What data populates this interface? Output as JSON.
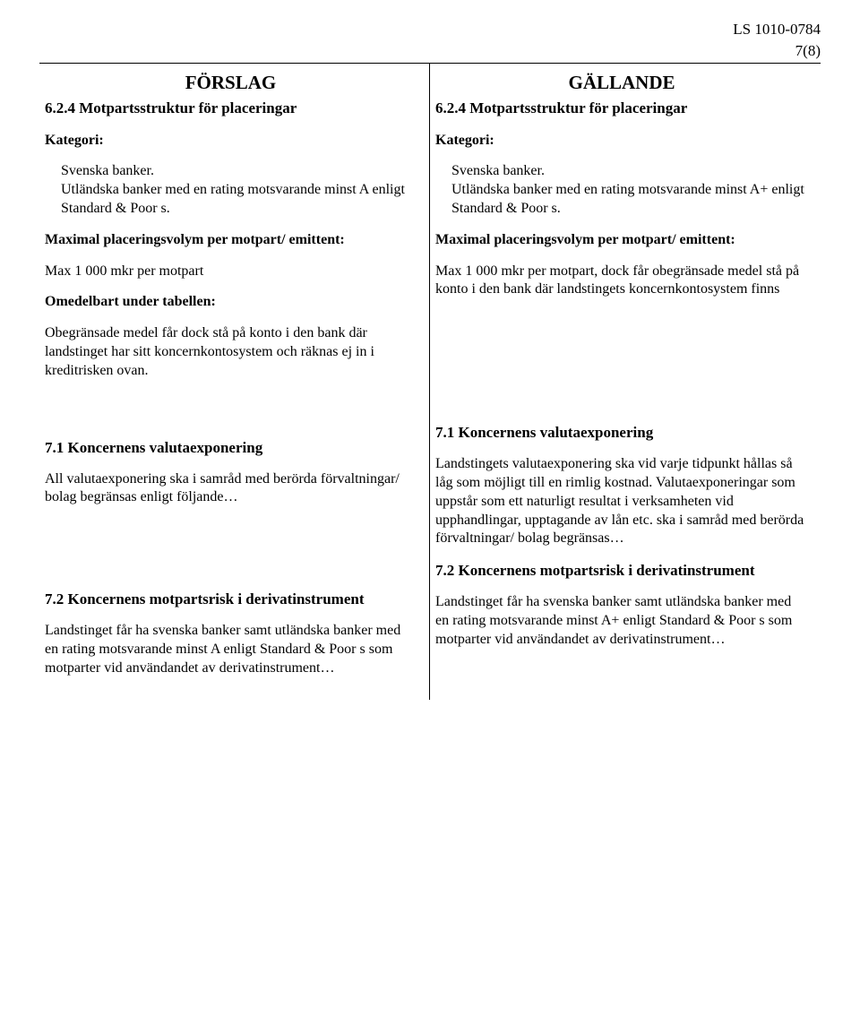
{
  "header": {
    "doc_ref": "LS 1010-0784",
    "page_number": "7(8)"
  },
  "left": {
    "title": "FÖRSLAG",
    "s624_heading": "6.2.4   Motpartsstruktur för placeringar",
    "kategori_label": "Kategori:",
    "kategori_body": "Svenska banker.\nUtländska banker med en rating motsvarande minst A enligt Standard & Poor s.",
    "maximal_label": "Maximal placeringsvolym per motpart/ emittent:",
    "max_line": "Max 1 000 mkr per motpart",
    "omedelbart_label": "Omedelbart under tabellen:",
    "obegr_body": "Obegränsade medel får dock stå på konto i den bank där landstinget har sitt koncernkontosystem och räknas ej in i kreditrisken ovan.",
    "s71_heading": "7.1   Koncernens valutaexponering",
    "s71_body": "All valutaexponering ska i samråd med berörda förvaltningar/ bolag begränsas enligt följande…",
    "s72_heading": "7.2   Koncernens motpartsrisk i derivatinstrument",
    "s72_body": "Landstinget får ha svenska banker samt utländska banker med en rating motsvarande minst A enligt Standard & Poor s som motparter vid användandet av derivatinstrument…"
  },
  "right": {
    "title": "GÄLLANDE",
    "s624_heading": "6.2.4   Motpartsstruktur för placeringar",
    "kategori_label": "Kategori:",
    "kategori_body": "Svenska banker.\nUtländska banker med en rating motsvarande minst A+ enligt Standard & Poor s.",
    "maximal_label": "Maximal placeringsvolym per motpart/ emittent:",
    "max_body": "Max 1 000 mkr per motpart, dock får obegränsade medel stå på konto i den bank där landstingets koncernkontosystem finns",
    "s71_heading": "7.1   Koncernens valutaexponering",
    "s71_body": "Landstingets valutaexponering ska vid varje tidpunkt hållas så låg som möjligt till en rimlig kostnad. Valutaexponeringar som uppstår som ett naturligt resultat i verksamheten vid upphandlingar, upptagande av lån etc. ska i samråd med berörda förvaltningar/ bolag begränsas…",
    "s72_heading": "7.2   Koncernens motpartsrisk i derivatinstrument",
    "s72_body": "Landstinget får ha svenska banker samt utländska banker med en rating motsvarande minst A+ enligt Standard & Poor s som motparter vid användandet av derivatinstrument…"
  }
}
